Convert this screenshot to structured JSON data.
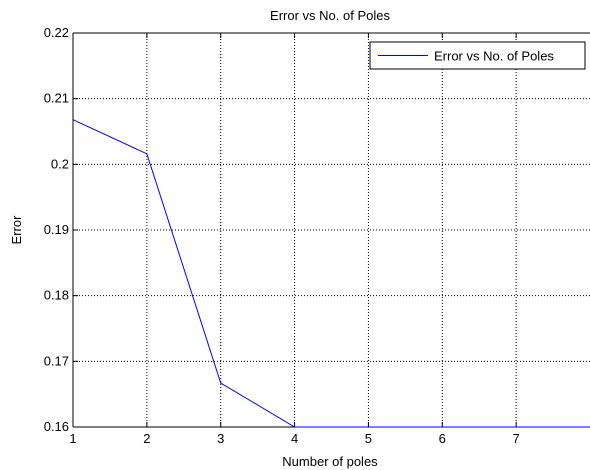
{
  "chart_data": {
    "type": "line",
    "title": "Error vs No. of Poles",
    "xlabel": "Number of poles",
    "ylabel": "Error",
    "xlim": [
      1,
      8
    ],
    "ylim": [
      0.16,
      0.22
    ],
    "xticks": [
      1,
      2,
      3,
      4,
      5,
      6,
      7
    ],
    "yticks": [
      0.16,
      0.17,
      0.18,
      0.19,
      0.2,
      0.21,
      0.22
    ],
    "xtick_labels": [
      "1",
      "2",
      "3",
      "4",
      "5",
      "6",
      "7"
    ],
    "ytick_labels": [
      "0.16",
      "0.17",
      "0.18",
      "0.19",
      "0.2",
      "0.21",
      "0.22"
    ],
    "grid": true,
    "grid_style": "dotted",
    "legend_position": "top-right",
    "series": [
      {
        "name": "Error vs No. of Poles",
        "color": "#0000ff",
        "x": [
          1,
          2,
          3,
          4,
          5,
          6,
          7,
          8
        ],
        "y": [
          0.2068,
          0.2016,
          0.1667,
          0.16,
          0.16,
          0.16,
          0.16,
          0.16
        ]
      }
    ]
  }
}
